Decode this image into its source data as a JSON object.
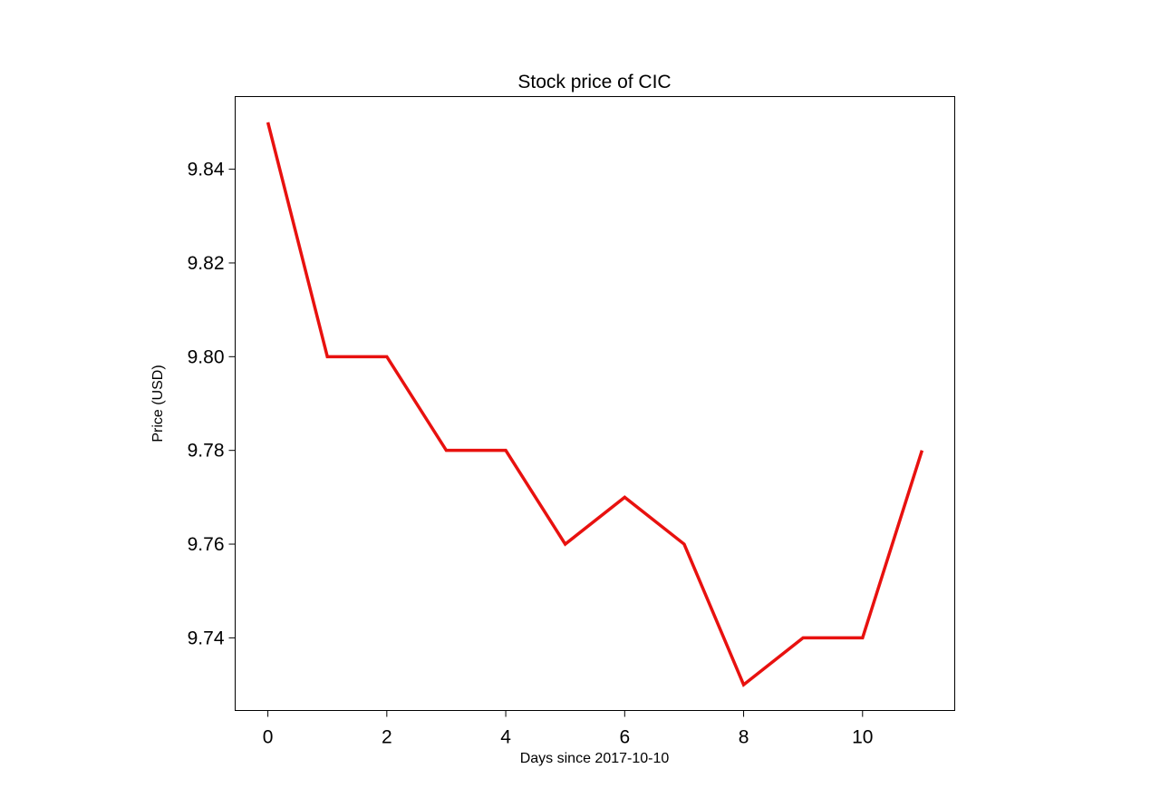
{
  "chart_data": {
    "type": "line",
    "title": "Stock price of CIC",
    "xlabel": "Days since 2017-10-10",
    "ylabel": "Price (USD)",
    "x": [
      0,
      1,
      2,
      3,
      4,
      5,
      6,
      7,
      8,
      9,
      10,
      11
    ],
    "series": [
      {
        "values": [
          9.85,
          9.8,
          9.8,
          9.78,
          9.78,
          9.76,
          9.77,
          9.76,
          9.73,
          9.74,
          9.74,
          9.78
        ],
        "color": "#e8110f"
      }
    ],
    "xlim": [
      -0.55,
      11.55
    ],
    "ylim": [
      9.7245,
      9.8555
    ],
    "xticks": [
      0,
      2,
      4,
      6,
      8,
      10
    ],
    "xtick_labels": [
      "0",
      "2",
      "4",
      "6",
      "8",
      "10"
    ],
    "yticks": [
      9.74,
      9.76,
      9.78,
      9.8,
      9.82,
      9.84
    ],
    "ytick_labels": [
      "9.74",
      "9.76",
      "9.78",
      "9.80",
      "9.82",
      "9.84"
    ],
    "grid": false,
    "legend": "none"
  }
}
